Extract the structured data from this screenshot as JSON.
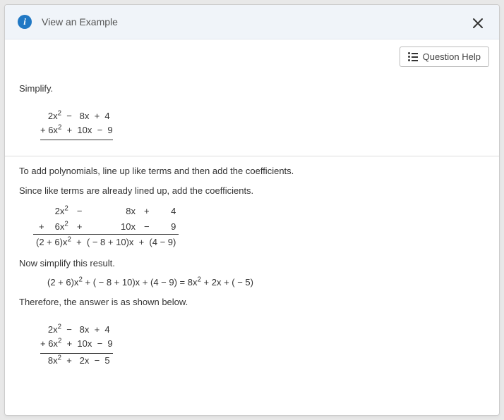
{
  "dialog": {
    "title": "View an Example",
    "closeLabel": "Close"
  },
  "toolbar": {
    "questionHelp": "Question Help"
  },
  "content": {
    "prompt": "Simplify.",
    "step1": "To add polynomials, line up like terms and then add the coefficients.",
    "step2": "Since like terms are already lined up, add the coefficients.",
    "step3": "Now simplify this result.",
    "step4": "Therefore, the answer is as shown below."
  },
  "math": {
    "problem": {
      "line1_html": "&nbsp;&nbsp;&nbsp;2x<sup>2</sup> &nbsp;&minus;&nbsp;&nbsp;&nbsp;8x &nbsp;+&nbsp; 4",
      "line2_html": "+ 6x<sup>2</sup> &nbsp;+&nbsp; 10x &nbsp;&minus;&nbsp; 9"
    },
    "aligned": {
      "r1": {
        "sign": "",
        "a": "2x",
        "aexp": "2",
        "op1": "−",
        "b": "8x",
        "op2": "+",
        "c": "4"
      },
      "r2": {
        "sign": "+",
        "a": "6x",
        "aexp": "2",
        "op1": "+",
        "b": "10x",
        "op2": "−",
        "c": "9"
      },
      "result_html": "(2 + 6)x<sup>2</sup> &nbsp;+&nbsp; ( &minus; 8 + 10)x &nbsp;+&nbsp; (4 &minus; 9)"
    },
    "simplify_html": "(2 + 6)x<sup>2</sup> + ( &minus; 8 + 10)x + (4 &minus; 9) = 8x<sup>2</sup> + 2x + ( &minus; 5)",
    "final": {
      "line1_html": "&nbsp;&nbsp;&nbsp;2x<sup>2</sup> &nbsp;&minus;&nbsp;&nbsp;&nbsp;8x &nbsp;+&nbsp; 4",
      "line2_html": "+ 6x<sup>2</sup> &nbsp;+&nbsp; 10x &nbsp;&minus;&nbsp; 9",
      "line3_html": "&nbsp;&nbsp;&nbsp;8x<sup>2</sup> &nbsp;+&nbsp;&nbsp;&nbsp;2x &nbsp;&minus;&nbsp; 5"
    }
  }
}
